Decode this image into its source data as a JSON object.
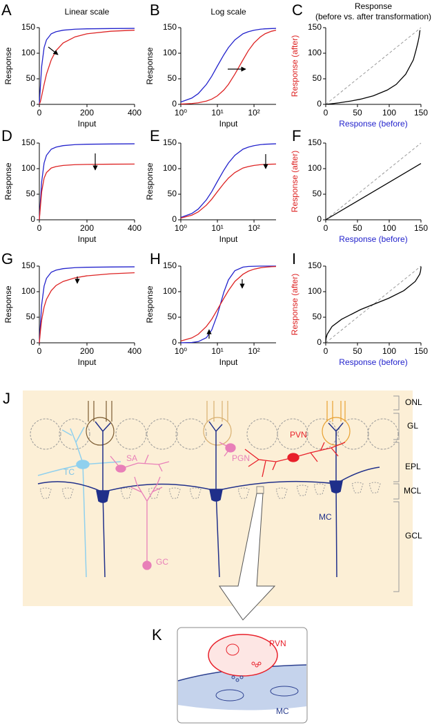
{
  "chart_data": [
    {
      "type": "line",
      "panel": "A",
      "title": "Linear scale",
      "xlabel": "Input",
      "ylabel": "Response",
      "xlim": [
        0,
        400
      ],
      "ylim": [
        0,
        150
      ],
      "xticks": [
        0,
        200,
        400
      ],
      "yticks": [
        0,
        50,
        100,
        150
      ],
      "series": [
        {
          "color": "#2222cc",
          "x": [
            0,
            5,
            10,
            20,
            30,
            50,
            70,
            100,
            150,
            200,
            300,
            400
          ],
          "values": [
            0,
            39,
            75,
            111,
            126,
            138,
            142,
            145,
            147,
            147.7,
            148.2,
            148.6
          ]
        },
        {
          "color": "#dd2222",
          "x": [
            0,
            5,
            10,
            20,
            30,
            50,
            70,
            100,
            150,
            200,
            300,
            400
          ],
          "values": [
            0,
            6.4,
            16.7,
            39,
            59,
            87,
            105,
            120,
            132,
            138,
            143,
            145
          ]
        }
      ]
    },
    {
      "type": "line",
      "panel": "B",
      "title": "Log scale",
      "xlabel": "Input",
      "ylabel": "Response",
      "xscale": "log",
      "xlim": [
        1,
        400
      ],
      "ylim": [
        0,
        150
      ],
      "xticks": [
        {
          "value": 1,
          "label": "10⁰"
        },
        {
          "value": 10,
          "label": "10¹"
        },
        {
          "value": 100,
          "label": "10²"
        }
      ],
      "yticks": [
        0,
        50,
        100,
        150
      ],
      "series": [
        {
          "color": "#2222cc",
          "x": [
            1,
            2,
            3,
            5,
            7,
            10,
            15,
            20,
            30,
            50,
            70,
            100,
            150,
            200,
            300,
            400
          ],
          "values": [
            4.6,
            12.3,
            21,
            39,
            55,
            75,
            97,
            111,
            126,
            138,
            142,
            145,
            147,
            147.7,
            148.2,
            148.6
          ]
        },
        {
          "color": "#dd2222",
          "x": [
            1,
            2,
            3,
            5,
            7,
            10,
            15,
            20,
            30,
            50,
            70,
            100,
            150,
            200,
            300,
            400
          ],
          "values": [
            0.6,
            1.7,
            3,
            6.4,
            10.2,
            16.7,
            28,
            39,
            59,
            87,
            105,
            120,
            132,
            138,
            143,
            145
          ]
        }
      ]
    },
    {
      "type": "line",
      "panel": "C",
      "title": "Response",
      "subtitle": "(before vs. after transformation)",
      "xlabel": "Response (before)",
      "ylabel": "Response (after)",
      "xlabel_color": "#2222cc",
      "ylabel_color": "#dd2222",
      "xlim": [
        0,
        150
      ],
      "ylim": [
        0,
        150
      ],
      "xticks": [
        0,
        50,
        100,
        150
      ],
      "yticks": [
        0,
        50,
        100,
        150
      ],
      "series": [
        {
          "color": "#999999",
          "dash": true,
          "x": [
            0,
            150
          ],
          "values": [
            0,
            150
          ]
        },
        {
          "color": "#000000",
          "x": [
            0,
            4.6,
            12.3,
            21,
            39,
            55,
            75,
            97,
            111,
            126,
            138,
            142,
            145,
            147,
            147.7,
            148.2,
            148.6
          ],
          "values": [
            0,
            0.6,
            1.7,
            3,
            6.4,
            10.2,
            16.7,
            28,
            39,
            59,
            87,
            105,
            120,
            132,
            138,
            143,
            145
          ]
        }
      ]
    },
    {
      "type": "line",
      "panel": "D",
      "xlabel": "Input",
      "ylabel": "Response",
      "xlim": [
        0,
        400
      ],
      "ylim": [
        0,
        150
      ],
      "xticks": [
        0,
        200,
        400
      ],
      "yticks": [
        0,
        50,
        100,
        150
      ],
      "series": [
        {
          "color": "#2222cc",
          "x": [
            0,
            5,
            10,
            20,
            30,
            50,
            70,
            100,
            150,
            200,
            300,
            400
          ],
          "values": [
            0,
            39,
            75,
            111,
            126,
            138,
            142,
            145,
            147,
            147.7,
            148.2,
            148.6
          ]
        },
        {
          "color": "#dd2222",
          "x": [
            0,
            5,
            10,
            20,
            30,
            50,
            70,
            100,
            150,
            200,
            300,
            400
          ],
          "values": [
            0,
            28.6,
            55,
            81.4,
            92.4,
            101.2,
            104.1,
            106.3,
            107.8,
            108.3,
            108.7,
            109
          ]
        }
      ]
    },
    {
      "type": "line",
      "panel": "E",
      "xlabel": "Input",
      "ylabel": "Response",
      "xscale": "log",
      "xlim": [
        1,
        400
      ],
      "ylim": [
        0,
        150
      ],
      "xticks": [
        {
          "value": 1,
          "label": "10⁰"
        },
        {
          "value": 10,
          "label": "10¹"
        },
        {
          "value": 100,
          "label": "10²"
        }
      ],
      "yticks": [
        0,
        50,
        100,
        150
      ],
      "series": [
        {
          "color": "#2222cc",
          "x": [
            1,
            2,
            3,
            5,
            7,
            10,
            15,
            20,
            30,
            50,
            70,
            100,
            150,
            200,
            300,
            400
          ],
          "values": [
            4.6,
            12.3,
            21,
            39,
            55,
            75,
            97,
            111,
            126,
            138,
            142,
            145,
            147,
            147.7,
            148.2,
            148.6
          ]
        },
        {
          "color": "#dd2222",
          "x": [
            1,
            2,
            3,
            5,
            7,
            10,
            15,
            20,
            30,
            50,
            70,
            100,
            150,
            200,
            300,
            400
          ],
          "values": [
            3.4,
            9,
            15.4,
            28.6,
            40.3,
            55,
            71.1,
            81.4,
            92.4,
            101.2,
            104.1,
            106.3,
            107.8,
            108.3,
            108.7,
            109
          ]
        }
      ]
    },
    {
      "type": "line",
      "panel": "F",
      "xlabel": "Response (before)",
      "ylabel": "Response (after)",
      "xlabel_color": "#2222cc",
      "ylabel_color": "#dd2222",
      "xlim": [
        0,
        150
      ],
      "ylim": [
        0,
        150
      ],
      "xticks": [
        0,
        50,
        100,
        150
      ],
      "yticks": [
        0,
        50,
        100,
        150
      ],
      "series": [
        {
          "color": "#999999",
          "dash": true,
          "x": [
            0,
            150
          ],
          "values": [
            0,
            150
          ]
        },
        {
          "color": "#000000",
          "x": [
            0,
            150
          ],
          "values": [
            0,
            110
          ]
        }
      ]
    },
    {
      "type": "line",
      "panel": "G",
      "xlabel": "Input",
      "ylabel": "Response",
      "xlim": [
        0,
        400
      ],
      "ylim": [
        0,
        150
      ],
      "xticks": [
        0,
        200,
        400
      ],
      "yticks": [
        0,
        50,
        100,
        150
      ],
      "series": [
        {
          "color": "#2222cc",
          "x": [
            0,
            5,
            10,
            20,
            30,
            50,
            70,
            100,
            150,
            200,
            300,
            400
          ],
          "values": [
            0,
            39,
            75,
            111,
            126,
            138,
            142,
            145,
            147,
            147.7,
            148.2,
            148.6
          ]
        },
        {
          "color": "#dd2222",
          "x": [
            0,
            5,
            10,
            20,
            30,
            50,
            70,
            100,
            150,
            200,
            300,
            400
          ],
          "values": [
            0,
            25,
            45,
            70,
            85,
            102,
            112,
            120,
            127,
            131,
            135,
            137
          ]
        }
      ]
    },
    {
      "type": "line",
      "panel": "H",
      "xlabel": "Input",
      "ylabel": "Response",
      "xscale": "log",
      "xlim": [
        1,
        400
      ],
      "ylim": [
        0,
        150
      ],
      "xticks": [
        {
          "value": 1,
          "label": "10⁰"
        },
        {
          "value": 10,
          "label": "10¹"
        },
        {
          "value": 100,
          "label": "10²"
        }
      ],
      "yticks": [
        0,
        50,
        100,
        150
      ],
      "series": [
        {
          "color": "#2222cc",
          "x": [
            1,
            2,
            3,
            5,
            7,
            10,
            15,
            20,
            30,
            50,
            70,
            100,
            150,
            200,
            300,
            400
          ],
          "values": [
            0.09,
            0.7,
            2.3,
            10,
            25,
            55,
            99,
            123,
            141,
            148,
            149.3,
            149.7,
            150,
            150,
            150,
            150
          ]
        },
        {
          "color": "#dd2222",
          "x": [
            1,
            2,
            3,
            5,
            7,
            10,
            15,
            20,
            30,
            50,
            70,
            100,
            150,
            200,
            300,
            400
          ],
          "values": [
            3.5,
            9.6,
            16.7,
            32,
            46,
            65,
            87,
            102,
            120,
            134,
            140,
            144,
            146.7,
            147.8,
            148.8,
            149.2
          ]
        }
      ]
    },
    {
      "type": "line",
      "panel": "I",
      "xlabel": "Response (before)",
      "ylabel": "Response (after)",
      "xlabel_color": "#2222cc",
      "ylabel_color": "#dd2222",
      "xlim": [
        0,
        150
      ],
      "ylim": [
        0,
        150
      ],
      "xticks": [
        0,
        50,
        100,
        150
      ],
      "yticks": [
        0,
        50,
        100,
        150
      ],
      "series": [
        {
          "color": "#999999",
          "dash": true,
          "x": [
            0,
            150
          ],
          "values": [
            0,
            150
          ]
        },
        {
          "color": "#000000",
          "x": [
            0,
            0.09,
            0.7,
            2.3,
            10,
            25,
            55,
            99,
            123,
            141,
            148,
            149.3,
            149.7,
            150,
            150,
            150,
            150
          ],
          "values": [
            0,
            3.5,
            9.6,
            16.7,
            32,
            46,
            65,
            87,
            102,
            120,
            134,
            140,
            144,
            146.7,
            147.8,
            148.8,
            149.2
          ]
        }
      ]
    }
  ],
  "diagram_j": {
    "panel": "J",
    "layers": [
      "ONL",
      "GL",
      "EPL",
      "MCL",
      "GCL"
    ],
    "cells": {
      "tc": "TC",
      "sa": "SA",
      "pgn": "PGN",
      "pvn": "PVN",
      "gc": "GC",
      "mc": "MC"
    }
  },
  "diagram_k": {
    "panel": "K",
    "labels": {
      "pvn": "PVN",
      "mc": "MC"
    }
  }
}
